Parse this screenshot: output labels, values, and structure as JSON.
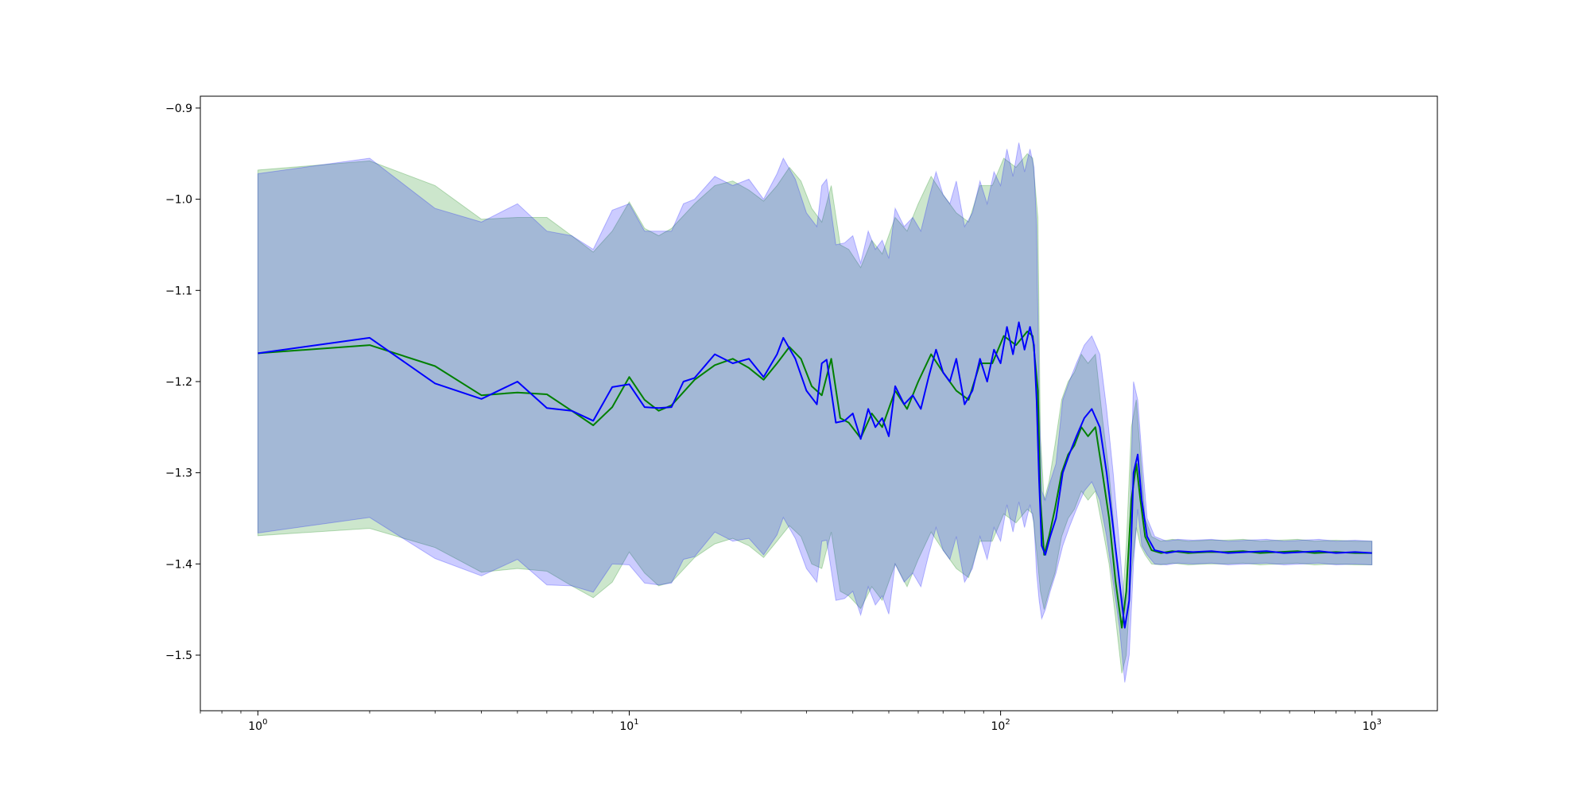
{
  "chart_data": {
    "type": "line",
    "title": "",
    "xlabel": "",
    "ylabel": "",
    "xscale": "log",
    "xlim": [
      0.7,
      1500
    ],
    "ylim": [
      -1.561,
      -0.887
    ],
    "grid": false,
    "legend": "none",
    "x_ticks": [
      {
        "value": 1,
        "base": "10",
        "exp": "0"
      },
      {
        "value": 10,
        "base": "10",
        "exp": "1"
      },
      {
        "value": 100,
        "base": "10",
        "exp": "2"
      },
      {
        "value": 1000,
        "base": "10",
        "exp": "3"
      }
    ],
    "y_ticks": [
      {
        "value": -0.9,
        "label": "−0.9"
      },
      {
        "value": -1.0,
        "label": "−1.0"
      },
      {
        "value": -1.1,
        "label": "−1.1"
      },
      {
        "value": -1.2,
        "label": "−1.2"
      },
      {
        "value": -1.3,
        "label": "−1.3"
      },
      {
        "value": -1.4,
        "label": "−1.4"
      },
      {
        "value": -1.5,
        "label": "−1.5"
      }
    ],
    "series": [
      {
        "color": "#008000",
        "band_color": "#008000",
        "band_opacity": 0.2,
        "x": [
          1,
          2,
          3,
          4,
          5,
          6,
          7,
          8,
          9,
          10,
          11,
          12,
          13,
          15,
          17,
          19,
          21,
          23,
          25,
          27,
          29,
          31,
          33,
          35,
          37,
          39,
          42,
          45,
          48,
          52,
          56,
          60,
          65,
          70,
          76,
          82,
          88,
          95,
          102,
          110,
          118,
          122,
          126,
          128,
          131,
          135,
          140,
          146,
          152,
          158,
          165,
          172,
          180,
          188,
          196,
          204,
          212,
          218,
          225,
          232,
          238,
          245,
          255,
          270,
          290,
          320,
          360,
          400,
          450,
          500,
          560,
          630,
          700,
          800,
          900,
          1000
        ],
        "y": [
          -1.169,
          -1.16,
          -1.183,
          -1.215,
          -1.212,
          -1.214,
          -1.232,
          -1.248,
          -1.228,
          -1.195,
          -1.22,
          -1.232,
          -1.226,
          -1.198,
          -1.182,
          -1.175,
          -1.185,
          -1.198,
          -1.18,
          -1.162,
          -1.175,
          -1.205,
          -1.215,
          -1.175,
          -1.24,
          -1.245,
          -1.262,
          -1.235,
          -1.25,
          -1.21,
          -1.23,
          -1.2,
          -1.17,
          -1.19,
          -1.21,
          -1.22,
          -1.18,
          -1.18,
          -1.15,
          -1.16,
          -1.145,
          -1.15,
          -1.21,
          -1.33,
          -1.39,
          -1.37,
          -1.34,
          -1.3,
          -1.28,
          -1.27,
          -1.25,
          -1.26,
          -1.25,
          -1.3,
          -1.35,
          -1.42,
          -1.47,
          -1.43,
          -1.33,
          -1.29,
          -1.33,
          -1.37,
          -1.385,
          -1.388,
          -1.386,
          -1.388,
          -1.387,
          -1.387,
          -1.386,
          -1.388,
          -1.387,
          -1.386,
          -1.388,
          -1.387,
          -1.388,
          -1.388
        ],
        "upper": [
          -0.968,
          -0.958,
          -0.985,
          -1.022,
          -1.02,
          -1.02,
          -1.04,
          -1.058,
          -1.035,
          -1.003,
          -1.032,
          -1.04,
          -1.032,
          -1.005,
          -0.985,
          -0.98,
          -0.99,
          -1.002,
          -0.985,
          -0.965,
          -0.98,
          -1.01,
          -1.025,
          -0.985,
          -1.05,
          -1.055,
          -1.075,
          -1.045,
          -1.06,
          -1.02,
          -1.035,
          -1.005,
          -0.975,
          -0.995,
          -1.015,
          -1.025,
          -0.985,
          -0.985,
          -0.955,
          -0.965,
          -0.95,
          -0.955,
          -1.02,
          -1.26,
          -1.33,
          -1.31,
          -1.27,
          -1.22,
          -1.2,
          -1.19,
          -1.17,
          -1.18,
          -1.17,
          -1.24,
          -1.3,
          -1.38,
          -1.45,
          -1.38,
          -1.25,
          -1.22,
          -1.28,
          -1.35,
          -1.37,
          -1.375,
          -1.373,
          -1.375,
          -1.374,
          -1.374,
          -1.373,
          -1.375,
          -1.374,
          -1.373,
          -1.375,
          -1.374,
          -1.375,
          -1.375
        ],
        "lower": [
          -1.369,
          -1.361,
          -1.382,
          -1.409,
          -1.405,
          -1.408,
          -1.424,
          -1.437,
          -1.42,
          -1.387,
          -1.41,
          -1.424,
          -1.42,
          -1.393,
          -1.378,
          -1.372,
          -1.38,
          -1.393,
          -1.375,
          -1.358,
          -1.37,
          -1.4,
          -1.405,
          -1.365,
          -1.43,
          -1.435,
          -1.449,
          -1.425,
          -1.44,
          -1.4,
          -1.425,
          -1.395,
          -1.365,
          -1.385,
          -1.405,
          -1.415,
          -1.375,
          -1.375,
          -1.345,
          -1.355,
          -1.34,
          -1.345,
          -1.4,
          -1.43,
          -1.45,
          -1.43,
          -1.41,
          -1.37,
          -1.35,
          -1.34,
          -1.32,
          -1.33,
          -1.32,
          -1.36,
          -1.4,
          -1.46,
          -1.52,
          -1.5,
          -1.41,
          -1.36,
          -1.38,
          -1.39,
          -1.4,
          -1.401,
          -1.399,
          -1.401,
          -1.4,
          -1.4,
          -1.399,
          -1.401,
          -1.4,
          -1.399,
          -1.401,
          -1.4,
          -1.401,
          -1.401
        ]
      },
      {
        "color": "#0000ff",
        "band_color": "#0000ff",
        "band_opacity": 0.2,
        "x": [
          1,
          2,
          3,
          4,
          5,
          6,
          7,
          8,
          9,
          10,
          11,
          12,
          13,
          14,
          15,
          17,
          19,
          21,
          23,
          25,
          26,
          28,
          30,
          32,
          33,
          34,
          36,
          38,
          40,
          42,
          44,
          46,
          48,
          50,
          52,
          55,
          58,
          61,
          64,
          67,
          70,
          73,
          76,
          80,
          84,
          88,
          92,
          96,
          100,
          104,
          108,
          112,
          116,
          120,
          123,
          125,
          127,
          129,
          132,
          136,
          141,
          147,
          153,
          160,
          168,
          176,
          185,
          193,
          201,
          209,
          216,
          222,
          228,
          234,
          240,
          248,
          260,
          280,
          300,
          330,
          370,
          410,
          460,
          520,
          580,
          650,
          720,
          800,
          900,
          1000
        ],
        "y": [
          -1.169,
          -1.152,
          -1.202,
          -1.219,
          -1.2,
          -1.229,
          -1.232,
          -1.243,
          -1.206,
          -1.203,
          -1.228,
          -1.229,
          -1.228,
          -1.2,
          -1.196,
          -1.17,
          -1.18,
          -1.175,
          -1.195,
          -1.17,
          -1.152,
          -1.175,
          -1.21,
          -1.225,
          -1.18,
          -1.176,
          -1.245,
          -1.243,
          -1.235,
          -1.263,
          -1.23,
          -1.25,
          -1.24,
          -1.26,
          -1.205,
          -1.225,
          -1.215,
          -1.23,
          -1.195,
          -1.165,
          -1.19,
          -1.2,
          -1.175,
          -1.225,
          -1.21,
          -1.175,
          -1.2,
          -1.165,
          -1.18,
          -1.14,
          -1.17,
          -1.135,
          -1.165,
          -1.14,
          -1.16,
          -1.22,
          -1.31,
          -1.38,
          -1.39,
          -1.37,
          -1.35,
          -1.3,
          -1.28,
          -1.26,
          -1.24,
          -1.23,
          -1.25,
          -1.3,
          -1.36,
          -1.42,
          -1.47,
          -1.44,
          -1.3,
          -1.28,
          -1.33,
          -1.37,
          -1.385,
          -1.388,
          -1.386,
          -1.387,
          -1.386,
          -1.388,
          -1.387,
          -1.386,
          -1.388,
          -1.387,
          -1.386,
          -1.388,
          -1.387,
          -1.388
        ],
        "upper": [
          -0.972,
          -0.955,
          -1.01,
          -1.025,
          -1.005,
          -1.035,
          -1.04,
          -1.055,
          -1.012,
          -1.005,
          -1.035,
          -1.035,
          -1.035,
          -1.005,
          -1.0,
          -0.975,
          -0.985,
          -0.978,
          -1.0,
          -0.972,
          -0.955,
          -0.978,
          -1.015,
          -1.03,
          -0.985,
          -0.978,
          -1.05,
          -1.048,
          -1.04,
          -1.07,
          -1.035,
          -1.055,
          -1.045,
          -1.065,
          -1.01,
          -1.03,
          -1.02,
          -1.035,
          -1.0,
          -0.97,
          -0.995,
          -1.005,
          -0.98,
          -1.03,
          -1.015,
          -0.98,
          -1.005,
          -0.97,
          -0.985,
          -0.945,
          -0.975,
          -0.938,
          -0.97,
          -0.945,
          -0.965,
          -1.03,
          -1.22,
          -1.32,
          -1.33,
          -1.31,
          -1.29,
          -1.22,
          -1.2,
          -1.18,
          -1.16,
          -1.15,
          -1.17,
          -1.23,
          -1.3,
          -1.38,
          -1.45,
          -1.38,
          -1.2,
          -1.22,
          -1.28,
          -1.35,
          -1.37,
          -1.375,
          -1.373,
          -1.374,
          -1.373,
          -1.375,
          -1.374,
          -1.373,
          -1.375,
          -1.374,
          -1.373,
          -1.375,
          -1.374,
          -1.375
        ],
        "lower": [
          -1.366,
          -1.349,
          -1.394,
          -1.413,
          -1.395,
          -1.423,
          -1.424,
          -1.431,
          -1.4,
          -1.401,
          -1.421,
          -1.423,
          -1.421,
          -1.395,
          -1.392,
          -1.365,
          -1.375,
          -1.372,
          -1.39,
          -1.368,
          -1.349,
          -1.372,
          -1.405,
          -1.42,
          -1.375,
          -1.374,
          -1.44,
          -1.438,
          -1.43,
          -1.456,
          -1.425,
          -1.445,
          -1.435,
          -1.455,
          -1.4,
          -1.42,
          -1.41,
          -1.425,
          -1.39,
          -1.36,
          -1.385,
          -1.395,
          -1.37,
          -1.42,
          -1.405,
          -1.37,
          -1.395,
          -1.36,
          -1.375,
          -1.335,
          -1.365,
          -1.332,
          -1.36,
          -1.335,
          -1.355,
          -1.41,
          -1.44,
          -1.46,
          -1.45,
          -1.43,
          -1.41,
          -1.38,
          -1.36,
          -1.34,
          -1.32,
          -1.31,
          -1.33,
          -1.37,
          -1.42,
          -1.47,
          -1.53,
          -1.5,
          -1.4,
          -1.34,
          -1.38,
          -1.39,
          -1.4,
          -1.401,
          -1.399,
          -1.4,
          -1.399,
          -1.401,
          -1.4,
          -1.399,
          -1.401,
          -1.4,
          -1.399,
          -1.401,
          -1.4,
          -1.401
        ]
      }
    ]
  }
}
